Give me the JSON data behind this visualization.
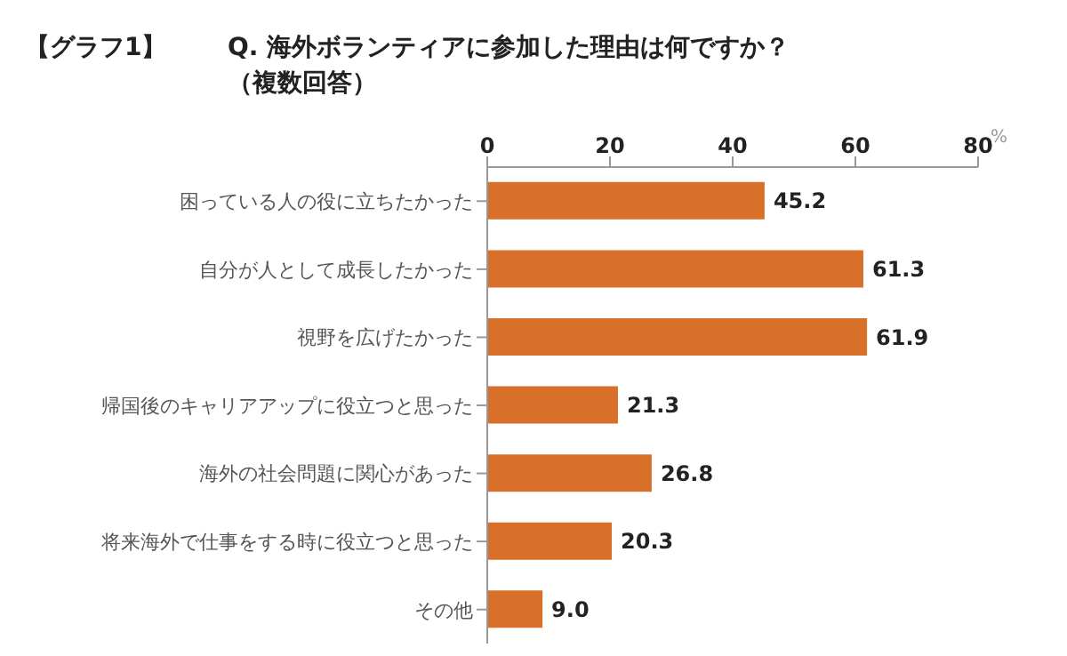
{
  "chart_data": {
    "type": "bar",
    "orientation": "horizontal",
    "title": "Q. 海外ボランティアに参加した理由は何ですか？",
    "subtitle": "（複数回答）",
    "annotations": [
      "【グラフ1】"
    ],
    "xlabel": "%",
    "categories": [
      "困っている人の役に立ちたかった",
      "自分が人として成長したかった",
      "視野を広げたかった",
      "帰国後のキャリアアップに役立つと思った",
      "海外の社会問題に関心があった",
      "将来海外で仕事をする時に役立つと思った",
      "その他"
    ],
    "values": [
      45.2,
      61.3,
      61.9,
      21.3,
      26.8,
      20.3,
      9.0
    ],
    "value_labels": [
      "45.2",
      "61.3",
      "61.9",
      "21.3",
      "26.8",
      "20.3",
      "9.0"
    ],
    "color": "#d9702a",
    "xlim": [
      0,
      80
    ],
    "xticks": [
      0,
      20,
      40,
      60,
      80
    ],
    "grid": false,
    "legend": false
  }
}
